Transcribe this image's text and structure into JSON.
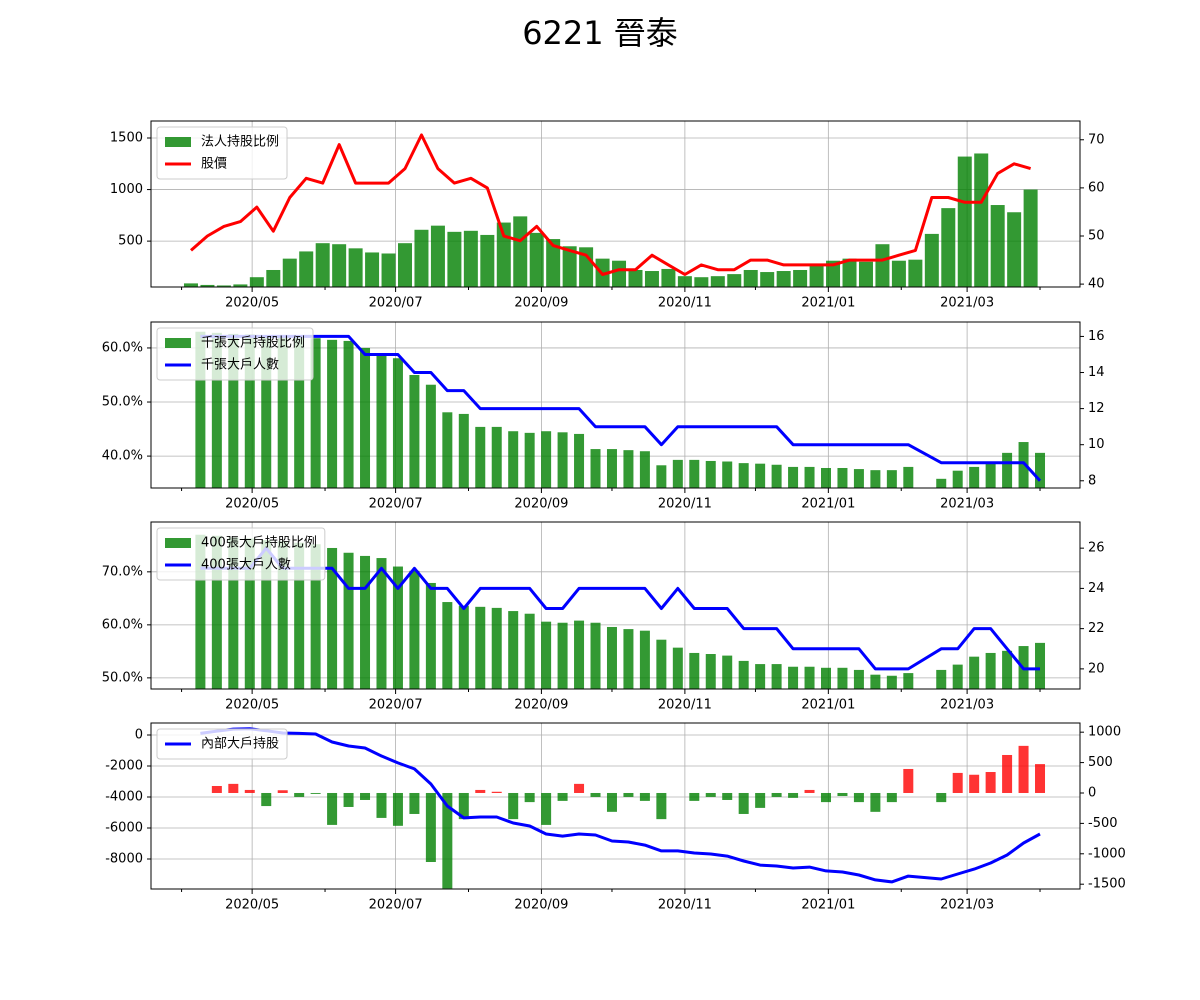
{
  "title": "6221 晉泰",
  "chart_data": [
    {
      "type": "combo",
      "x": [
        18357,
        18364,
        18371,
        18378,
        18385,
        18392,
        18399,
        18406,
        18413,
        18420,
        18427,
        18434,
        18441,
        18448,
        18455,
        18462,
        18469,
        18476,
        18483,
        18490,
        18497,
        18504,
        18511,
        18518,
        18525,
        18532,
        18539,
        18546,
        18553,
        18560,
        18567,
        18574,
        18581,
        18588,
        18595,
        18602,
        18609,
        18616,
        18623,
        18630,
        18637,
        18644,
        18651,
        18658,
        18665,
        18672,
        18679,
        18686,
        18693,
        18700,
        18707,
        18714
      ],
      "xlim": [
        18340,
        18735
      ],
      "xticks": [
        {
          "value": 18383,
          "label": "2020/05"
        },
        {
          "value": 18444,
          "label": "2020/07"
        },
        {
          "value": 18506,
          "label": "2020/09"
        },
        {
          "value": 18567,
          "label": "2020/11"
        },
        {
          "value": 18628,
          "label": "2021/01"
        },
        {
          "value": 18687,
          "label": "2021/03"
        }
      ],
      "xminorticks": [
        18353,
        18414,
        18475,
        18536,
        18597,
        18659,
        18718
      ],
      "ylim": [
        55,
        1665
      ],
      "yticks": [
        500,
        1000,
        1500
      ],
      "y2lim": [
        39.4,
        73.9
      ],
      "y2ticks": [
        40,
        50,
        60,
        70
      ],
      "grid": true,
      "legend": "upper left",
      "series": [
        {
          "name": "法人持股比例",
          "type": "bar",
          "color": "#008000",
          "axis": "y",
          "values": [
            90,
            75,
            70,
            80,
            150,
            220,
            330,
            400,
            480,
            470,
            430,
            390,
            380,
            480,
            610,
            650,
            590,
            600,
            560,
            680,
            740,
            580,
            520,
            450,
            440,
            330,
            310,
            220,
            210,
            230,
            160,
            150,
            160,
            180,
            220,
            200,
            210,
            220,
            280,
            310,
            330,
            300,
            470,
            310,
            320,
            570,
            820,
            1320,
            1350,
            850,
            780,
            1000
          ]
        },
        {
          "name": "股價",
          "type": "line",
          "color": "#ff0000",
          "axis": "y2",
          "values": [
            47,
            50,
            52,
            53,
            56,
            51,
            58,
            62,
            61,
            69,
            61,
            61,
            61,
            64,
            71,
            64,
            61,
            62,
            60,
            50,
            49,
            52,
            48,
            47,
            46,
            42,
            43,
            43,
            46,
            44,
            42,
            44,
            43,
            43,
            45,
            45,
            44,
            44,
            44,
            44,
            45,
            45,
            45,
            46,
            47,
            58,
            58,
            57,
            57,
            63,
            65,
            64
          ]
        }
      ]
    },
    {
      "type": "combo",
      "x": [
        18361,
        18368,
        18375,
        18382,
        18389,
        18396,
        18403,
        18410,
        18417,
        18424,
        18431,
        18438,
        18445,
        18452,
        18459,
        18466,
        18473,
        18480,
        18487,
        18494,
        18501,
        18508,
        18515,
        18522,
        18529,
        18536,
        18543,
        18550,
        18557,
        18564,
        18571,
        18578,
        18585,
        18592,
        18599,
        18606,
        18613,
        18620,
        18627,
        18634,
        18641,
        18648,
        18655,
        18662,
        18676,
        18683,
        18690,
        18697,
        18704,
        18711,
        18718
      ],
      "xlim": [
        18340,
        18735
      ],
      "xticks": [
        {
          "value": 18383,
          "label": "2020/05"
        },
        {
          "value": 18444,
          "label": "2020/07"
        },
        {
          "value": 18506,
          "label": "2020/09"
        },
        {
          "value": 18567,
          "label": "2020/11"
        },
        {
          "value": 18628,
          "label": "2021/01"
        },
        {
          "value": 18687,
          "label": "2021/03"
        }
      ],
      "xminorticks": [
        18353,
        18414,
        18475,
        18536,
        18597,
        18659,
        18718
      ],
      "ylim": [
        34.1,
        64.8
      ],
      "yticks": [
        {
          "value": 40,
          "label": "40.0%"
        },
        {
          "value": 50,
          "label": "50.0%"
        },
        {
          "value": 60,
          "label": "60.0%"
        }
      ],
      "y2lim": [
        7.6,
        16.8
      ],
      "y2ticks": [
        8,
        10,
        12,
        14,
        16
      ],
      "grid": true,
      "legend": "upper left",
      "series": [
        {
          "name": "千張大戶持股比例",
          "type": "bar",
          "color": "#008000",
          "axis": "y",
          "values": [
            63,
            62.8,
            62.6,
            62.5,
            62.3,
            62.2,
            62.0,
            61.8,
            61.5,
            61.3,
            60.0,
            58.7,
            58.1,
            55.0,
            53.2,
            48.1,
            47.8,
            45.4,
            45.4,
            44.6,
            44.3,
            44.6,
            44.4,
            44.1,
            41.3,
            41.3,
            41.1,
            40.9,
            38.3,
            39.3,
            39.3,
            39.1,
            39.0,
            38.7,
            38.6,
            38.4,
            38.0,
            38.0,
            37.8,
            37.8,
            37.6,
            37.4,
            37.4,
            38.0,
            35.8,
            37.3,
            38.0,
            38.7,
            40.6,
            42.6,
            40.6
          ]
        },
        {
          "name": "千張大戶人數",
          "type": "line",
          "color": "#0000ff",
          "axis": "y2",
          "values": [
            16,
            16,
            16,
            16,
            16,
            16,
            16,
            16,
            16,
            16,
            15,
            15,
            15,
            14,
            14,
            13,
            13,
            12,
            12,
            12,
            12,
            12,
            12,
            12,
            11,
            11,
            11,
            11,
            10,
            11,
            11,
            11,
            11,
            11,
            11,
            11,
            10,
            10,
            10,
            10,
            10,
            10,
            10,
            10,
            9,
            9,
            9,
            9,
            9,
            9,
            8
          ]
        }
      ]
    },
    {
      "type": "combo",
      "x": [
        18361,
        18368,
        18375,
        18382,
        18389,
        18396,
        18403,
        18410,
        18417,
        18424,
        18431,
        18438,
        18445,
        18452,
        18459,
        18466,
        18473,
        18480,
        18487,
        18494,
        18501,
        18508,
        18515,
        18522,
        18529,
        18536,
        18543,
        18550,
        18557,
        18564,
        18571,
        18578,
        18585,
        18592,
        18599,
        18606,
        18613,
        18620,
        18627,
        18634,
        18641,
        18648,
        18655,
        18662,
        18676,
        18683,
        18690,
        18697,
        18704,
        18711,
        18718
      ],
      "xlim": [
        18340,
        18735
      ],
      "xticks": [
        {
          "value": 18383,
          "label": "2020/05"
        },
        {
          "value": 18444,
          "label": "2020/07"
        },
        {
          "value": 18506,
          "label": "2020/09"
        },
        {
          "value": 18567,
          "label": "2020/11"
        },
        {
          "value": 18628,
          "label": "2021/01"
        },
        {
          "value": 18687,
          "label": "2021/03"
        }
      ],
      "xminorticks": [
        18353,
        18414,
        18475,
        18536,
        18597,
        18659,
        18718
      ],
      "ylim": [
        47.9,
        79.4
      ],
      "yticks": [
        {
          "value": 50,
          "label": "50.0%"
        },
        {
          "value": 60,
          "label": "60.0%"
        },
        {
          "value": 70,
          "label": "70.0%"
        }
      ],
      "y2lim": [
        19.0,
        27.3
      ],
      "y2ticks": [
        20,
        22,
        24,
        26
      ],
      "grid": true,
      "legend": "upper left",
      "series": [
        {
          "name": "400張大戶持股比例",
          "type": "bar",
          "color": "#008000",
          "axis": "y",
          "values": [
            77,
            76.8,
            76.5,
            76.3,
            76,
            75.8,
            75.5,
            75.2,
            74.5,
            73.6,
            73.0,
            72.6,
            71.0,
            70.2,
            67.9,
            64.3,
            63.6,
            63.4,
            63.2,
            62.6,
            62.1,
            60.6,
            60.4,
            60.8,
            60.4,
            59.6,
            59.2,
            58.9,
            57.2,
            55.7,
            54.7,
            54.5,
            54.2,
            53.2,
            52.6,
            52.6,
            52.1,
            52.1,
            51.9,
            51.9,
            51.5,
            50.6,
            50.4,
            50.9,
            51.5,
            52.5,
            54.0,
            54.7,
            55.1,
            56.0,
            56.6
          ]
        },
        {
          "name": "400張大戶人數",
          "type": "line",
          "color": "#0000ff",
          "axis": "y2",
          "values": [
            25,
            25,
            25,
            25,
            26,
            25,
            25,
            25,
            25,
            24,
            24,
            25,
            24,
            25,
            24,
            24,
            23,
            24,
            24,
            24,
            24,
            23,
            23,
            24,
            24,
            24,
            24,
            24,
            23,
            24,
            23,
            23,
            23,
            22,
            22,
            22,
            21,
            21,
            21,
            21,
            21,
            20,
            20,
            20,
            21,
            21,
            22,
            22,
            21,
            20,
            20
          ]
        }
      ]
    },
    {
      "type": "combo",
      "x": [
        18361,
        18368,
        18375,
        18382,
        18389,
        18396,
        18403,
        18410,
        18417,
        18424,
        18431,
        18438,
        18445,
        18452,
        18459,
        18466,
        18473,
        18480,
        18487,
        18494,
        18501,
        18508,
        18515,
        18522,
        18529,
        18536,
        18543,
        18550,
        18557,
        18564,
        18571,
        18578,
        18585,
        18592,
        18599,
        18606,
        18613,
        18620,
        18627,
        18634,
        18641,
        18648,
        18655,
        18662,
        18676,
        18683,
        18690,
        18697,
        18704,
        18711,
        18718
      ],
      "xlim": [
        18340,
        18735
      ],
      "xticks": [
        {
          "value": 18383,
          "label": "2020/05"
        },
        {
          "value": 18444,
          "label": "2020/07"
        },
        {
          "value": 18506,
          "label": "2020/09"
        },
        {
          "value": 18567,
          "label": "2020/11"
        },
        {
          "value": 18628,
          "label": "2021/01"
        },
        {
          "value": 18687,
          "label": "2021/03"
        }
      ],
      "xminorticks": [
        18353,
        18414,
        18475,
        18536,
        18597,
        18659,
        18718
      ],
      "ylim": [
        -9935,
        774
      ],
      "yticks": [
        0,
        -2000,
        -4000,
        -6000,
        -8000
      ],
      "y2lim": [
        -1579,
        1151
      ],
      "y2ticks": [
        1000,
        500,
        0,
        -500,
        -1000,
        -1500
      ],
      "grid": true,
      "legend": "upper left",
      "series": [
        {
          "type": "bar",
          "color": "#ff0000",
          "color_negative": "#008000",
          "axis": "y2",
          "values": [
            0,
            115,
            150,
            50,
            -215,
            45,
            -65,
            -15,
            -525,
            -230,
            -115,
            -410,
            -540,
            -345,
            -1135,
            -1570,
            -430,
            50,
            20,
            -430,
            -150,
            -525,
            -130,
            150,
            -65,
            -310,
            -65,
            -130,
            -430,
            0,
            -130,
            -65,
            -115,
            -345,
            -245,
            -65,
            -80,
            50,
            -150,
            -50,
            -150,
            -310,
            -150,
            395,
            -150,
            330,
            300,
            345,
            625,
            775,
            475
          ]
        },
        {
          "name": "內部大戶持股",
          "type": "line",
          "color": "#0000ff",
          "axis": "y",
          "values": [
            100,
            250,
            380,
            400,
            280,
            130,
            100,
            65,
            -450,
            -710,
            -840,
            -1355,
            -1800,
            -2190,
            -3160,
            -4580,
            -5350,
            -5290,
            -5290,
            -5680,
            -5870,
            -6390,
            -6520,
            -6390,
            -6450,
            -6840,
            -6900,
            -7100,
            -7480,
            -7480,
            -7610,
            -7680,
            -7810,
            -8130,
            -8390,
            -8450,
            -8580,
            -8520,
            -8770,
            -8840,
            -9030,
            -9350,
            -9480,
            -9100,
            -9290,
            -8970,
            -8650,
            -8260,
            -7740,
            -6970,
            -6390
          ]
        }
      ]
    }
  ]
}
